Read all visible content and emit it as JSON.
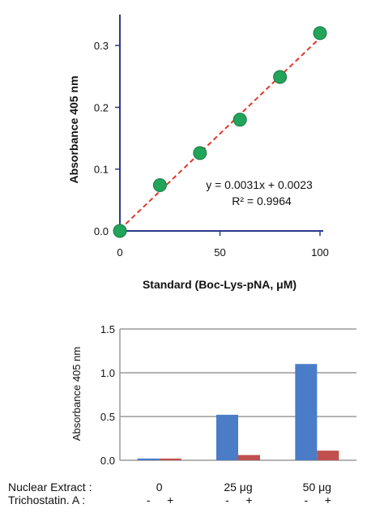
{
  "chart_data": [
    {
      "type": "scatter",
      "xlabel": "Standard (Boc-Lys-pNA, μM)",
      "ylabel": "Absorbance 405 nm",
      "xlim": [
        0,
        100
      ],
      "ylim": [
        0,
        0.35
      ],
      "x_ticks": [
        "0",
        "50",
        "100"
      ],
      "y_ticks": [
        "0.0",
        "0.1",
        "0.2",
        "0.3"
      ],
      "grid": false,
      "points": [
        {
          "x": 0,
          "y": 0.0
        },
        {
          "x": 20,
          "y": 0.074
        },
        {
          "x": 40,
          "y": 0.126
        },
        {
          "x": 60,
          "y": 0.18
        },
        {
          "x": 80,
          "y": 0.249
        },
        {
          "x": 100,
          "y": 0.32
        }
      ],
      "fit": {
        "slope": 0.0031,
        "intercept": 0.0023
      },
      "annotations": [
        "y = 0.0031x + 0.0023",
        "R² = 0.9964"
      ],
      "colors": {
        "axis": "#2b3a8c",
        "marker": "#22a45a",
        "fit_line": "#e0392b"
      }
    },
    {
      "type": "bar",
      "ylabel": "Absorbance 405 nm",
      "ylim": [
        0,
        1.5
      ],
      "y_ticks": [
        "0.0",
        "0.5",
        "1.0",
        "1.5"
      ],
      "grid": true,
      "row_labels": [
        "Nuclear Extract :",
        "Trichostatin. A :"
      ],
      "groups": [
        "0",
        "25  μg",
        "50 μg"
      ],
      "sub_labels": [
        "-",
        "+",
        "-",
        "+",
        "-",
        "+"
      ],
      "series": [
        {
          "values": [
            0.02,
            0.52,
            1.1
          ],
          "color": "#4a7cc7"
        },
        {
          "values": [
            0.02,
            0.06,
            0.11
          ],
          "color": "#c0504d"
        }
      ]
    }
  ]
}
